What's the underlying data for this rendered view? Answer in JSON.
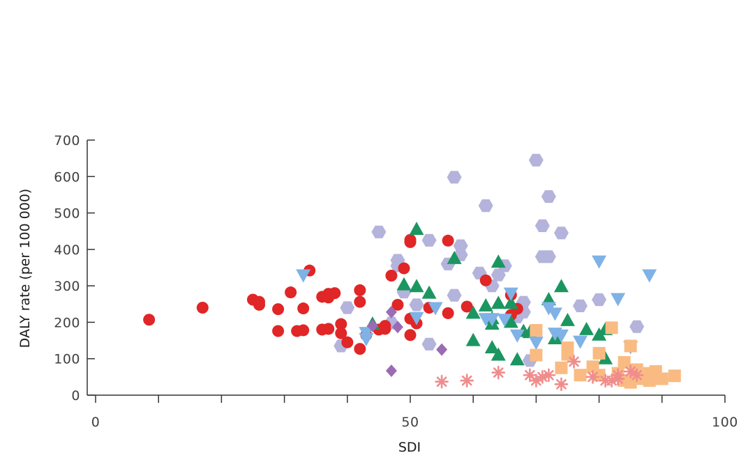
{
  "chart_data": {
    "type": "scatter",
    "xlabel": "SDI",
    "ylabel": "DALY rate (per 100 000)",
    "xlim": [
      0,
      100
    ],
    "ylim": [
      0,
      700
    ],
    "x_ticks": [
      0,
      50,
      100
    ],
    "x_minor_ticks": [
      0,
      10,
      20,
      30,
      40,
      50,
      60,
      70,
      80,
      90,
      100
    ],
    "y_ticks": [
      0,
      100,
      200,
      300,
      400,
      500,
      600,
      700
    ],
    "x_tick_labels": [
      "0",
      "50",
      "100"
    ],
    "y_tick_labels": [
      "0",
      "100",
      "200",
      "300",
      "400",
      "500",
      "600",
      "700"
    ],
    "grid": false,
    "legend": false,
    "series": [
      {
        "marker": "hexagon",
        "color": "#b3b3db",
        "points": [
          [
            39,
            135
          ],
          [
            40,
            240
          ],
          [
            45,
            448
          ],
          [
            48,
            370
          ],
          [
            48,
            355
          ],
          [
            49,
            283
          ],
          [
            51,
            248
          ],
          [
            53,
            140
          ],
          [
            53,
            425
          ],
          [
            56,
            360
          ],
          [
            57,
            598
          ],
          [
            57,
            274
          ],
          [
            58,
            410
          ],
          [
            58,
            385
          ],
          [
            61,
            335
          ],
          [
            62,
            520
          ],
          [
            63,
            300
          ],
          [
            64,
            330
          ],
          [
            65,
            355
          ],
          [
            67,
            215
          ],
          [
            68,
            255
          ],
          [
            68,
            228
          ],
          [
            70,
            645
          ],
          [
            71,
            465
          ],
          [
            71,
            380
          ],
          [
            72,
            380
          ],
          [
            72,
            545
          ],
          [
            74,
            445
          ],
          [
            77,
            245
          ],
          [
            80,
            262
          ],
          [
            86,
            188
          ],
          [
            69,
            95
          ],
          [
            47,
            198
          ]
        ]
      },
      {
        "marker": "circle",
        "color": "#e02626",
        "points": [
          [
            8.5,
            207
          ],
          [
            17,
            240
          ],
          [
            25,
            262
          ],
          [
            26,
            248
          ],
          [
            26,
            256
          ],
          [
            29,
            236
          ],
          [
            29,
            176
          ],
          [
            31,
            282
          ],
          [
            32,
            176
          ],
          [
            33,
            238
          ],
          [
            33,
            178
          ],
          [
            34,
            342
          ],
          [
            36,
            270
          ],
          [
            36,
            180
          ],
          [
            37,
            268
          ],
          [
            37,
            278
          ],
          [
            37,
            182
          ],
          [
            38,
            280
          ],
          [
            39,
            195
          ],
          [
            39,
            170
          ],
          [
            40,
            145
          ],
          [
            42,
            288
          ],
          [
            42,
            256
          ],
          [
            42,
            127
          ],
          [
            43,
            165
          ],
          [
            45,
            180
          ],
          [
            46,
            182
          ],
          [
            46,
            190
          ],
          [
            47,
            328
          ],
          [
            48,
            248
          ],
          [
            49,
            348
          ],
          [
            50,
            420
          ],
          [
            50,
            426
          ],
          [
            50,
            210
          ],
          [
            50,
            165
          ],
          [
            51,
            197
          ],
          [
            53,
            240
          ],
          [
            56,
            424
          ],
          [
            56,
            225
          ],
          [
            59,
            243
          ],
          [
            62,
            315
          ],
          [
            66,
            275
          ],
          [
            66,
            220
          ],
          [
            67,
            237
          ]
        ]
      },
      {
        "marker": "triangle-up",
        "color": "#1c9660",
        "points": [
          [
            44,
            195
          ],
          [
            49,
            303
          ],
          [
            51,
            455
          ],
          [
            51,
            298
          ],
          [
            53,
            280
          ],
          [
            57,
            375
          ],
          [
            60,
            150
          ],
          [
            60,
            225
          ],
          [
            62,
            245
          ],
          [
            63,
            210
          ],
          [
            63,
            195
          ],
          [
            63,
            130
          ],
          [
            64,
            110
          ],
          [
            64,
            252
          ],
          [
            64,
            365
          ],
          [
            66,
            252
          ],
          [
            66,
            200
          ],
          [
            67,
            97
          ],
          [
            68,
            175
          ],
          [
            69,
            172
          ],
          [
            72,
            262
          ],
          [
            73,
            155
          ],
          [
            74,
            298
          ],
          [
            75,
            205
          ],
          [
            78,
            180
          ],
          [
            80,
            165
          ],
          [
            81,
            100
          ],
          [
            81,
            180
          ]
        ]
      },
      {
        "marker": "triangle-down",
        "color": "#7fb2e6",
        "points": [
          [
            33,
            330
          ],
          [
            43,
            172
          ],
          [
            43,
            155
          ],
          [
            51,
            213
          ],
          [
            54,
            240
          ],
          [
            62,
            210
          ],
          [
            63,
            210
          ],
          [
            65,
            208
          ],
          [
            66,
            280
          ],
          [
            67,
            165
          ],
          [
            70,
            145
          ],
          [
            72,
            240
          ],
          [
            73,
            225
          ],
          [
            73,
            170
          ],
          [
            74,
            165
          ],
          [
            77,
            148
          ],
          [
            80,
            368
          ],
          [
            83,
            265
          ],
          [
            85,
            133
          ],
          [
            88,
            330
          ]
        ]
      },
      {
        "marker": "square",
        "color": "#f9bb82",
        "points": [
          [
            70,
            178
          ],
          [
            70,
            110
          ],
          [
            74,
            75
          ],
          [
            75,
            112
          ],
          [
            75,
            130
          ],
          [
            77,
            55
          ],
          [
            79,
            78
          ],
          [
            80,
            55
          ],
          [
            80,
            115
          ],
          [
            82,
            185
          ],
          [
            83,
            60
          ],
          [
            84,
            40
          ],
          [
            84,
            90
          ],
          [
            85,
            35
          ],
          [
            85,
            135
          ],
          [
            86,
            70
          ],
          [
            86,
            50
          ],
          [
            87,
            45
          ],
          [
            88,
            40
          ],
          [
            88,
            60
          ],
          [
            89,
            65
          ],
          [
            89,
            45
          ],
          [
            90,
            45
          ],
          [
            92,
            53
          ]
        ]
      },
      {
        "marker": "asterisk",
        "color": "#f08c8c",
        "points": [
          [
            55,
            37
          ],
          [
            59,
            40
          ],
          [
            64,
            62
          ],
          [
            69,
            55
          ],
          [
            70,
            40
          ],
          [
            71,
            50
          ],
          [
            72,
            55
          ],
          [
            74,
            30
          ],
          [
            76,
            92
          ],
          [
            79,
            50
          ],
          [
            81,
            40
          ],
          [
            82,
            40
          ],
          [
            83,
            45
          ],
          [
            83,
            55
          ],
          [
            85,
            65
          ],
          [
            86,
            55
          ]
        ]
      },
      {
        "marker": "diamond",
        "color": "#9b6bb5",
        "points": [
          [
            47,
            228
          ],
          [
            47,
            67
          ],
          [
            55,
            125
          ],
          [
            44,
            190
          ],
          [
            48,
            187
          ]
        ]
      }
    ]
  }
}
